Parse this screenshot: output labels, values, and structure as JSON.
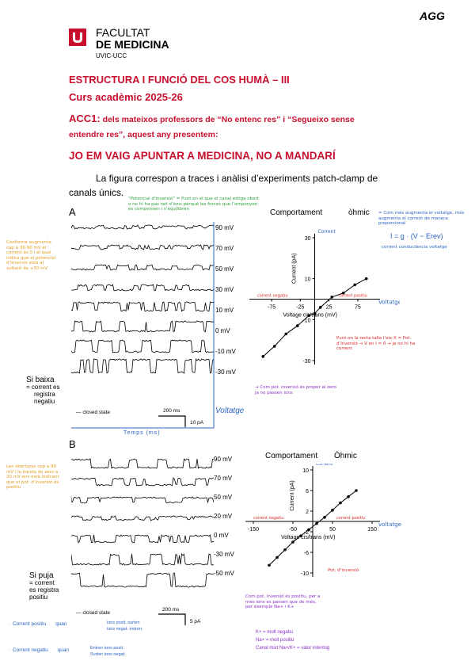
{
  "header": {
    "initials": "AGG",
    "faculty_line1": "FACULTAT",
    "faculty_line2": "DE MEDICINA",
    "university": "UVIC-UCC"
  },
  "course": {
    "title": "ESTRUCTURA I FUNCIÓ DEL COS HUMÀ – III",
    "year": "Curs acadèmic 2025-26",
    "acc_code": "ACC1:",
    "acc_text_1": "dels mateixos professors de “No entenc res” i “Segueixo sense",
    "acc_text_2": "entendre res”, aquest any presentem:",
    "slogan": "JO EM VAIG APUNTAR A MEDICINA, NO A MANDARÍ",
    "intro_line1": "La figura correspon a traces i anàlisi d’experiments patch-clamp de",
    "intro_line2": "canals únics."
  },
  "panel_a": {
    "label": "A",
    "voltages": [
      "90 mV",
      "70 mV",
      "50 mV",
      "30 mV",
      "10 mV",
      "0 mV",
      "-10 mV",
      "-30 mV"
    ],
    "closed_state": "closed state",
    "time_scale": "200 ms",
    "current_scale": "10 pA",
    "annotations": {
      "potencial_invers": "“Potencial d’inversió” = Punt en el que el canal estiga obert o no hi ha pas net d’ions perquè les forces que l’empenyen es compensen i s’equilibren",
      "conforme": "Conforme augmenta cap a 30-90 mV el corrent és 0 i el qual indica que el potencial d’inversió està al voltant de +30 mV",
      "si_baixa_1": "Si baixa",
      "si_baixa_2": "= corrent es",
      "si_baixa_3": "registra",
      "si_baixa_4": "negatiu",
      "com_pot": "→ Com pot. inversió és proper al zero ja no passen ions",
      "voltatge": "Voltatge",
      "temps": "Temps (ms)"
    }
  },
  "graph_a": {
    "title_1": "Comportament",
    "title_2": "òhmic",
    "ohmic_note": "= Com més augmenta el voltatge, més augmenta el corrent de manera proporcional",
    "formula": "I = g · (V − Erev)",
    "formula_labels": "corrent conductància voltatge",
    "y_label": "Current (pA)",
    "x_label": "Voltage cis/trans (mV)",
    "corrent_label": "Corrent",
    "voltatge_label": "Voltatge",
    "corrent_positiu": "corrent positiu",
    "corrent_negatiu": "corrent negatiu",
    "punt_note": "Punt on la recta talla l’eix X = Pot. d’inversió → V en I = 0 → ja no hi ha corrent"
  },
  "chart_data": [
    {
      "type": "line",
      "title": "",
      "xlabel": "Voltage cis/trans (mV)",
      "ylabel": "Current (pA)",
      "xlim": [
        -100,
        100
      ],
      "ylim": [
        -30,
        30
      ],
      "x_ticks": [
        -75,
        -25,
        25,
        75
      ],
      "y_ticks": [
        30,
        10,
        -10,
        -30
      ],
      "x": [
        -90,
        -70,
        -50,
        -30,
        -10,
        0,
        10,
        30,
        50,
        70,
        90
      ],
      "y": [
        -28,
        -23,
        -17,
        -13,
        -8,
        -7,
        -4,
        1,
        3,
        7,
        10
      ]
    },
    {
      "type": "line",
      "title": "",
      "xlabel": "Voltage cis/trans (mV)",
      "ylabel": "Current (pA)",
      "xlim": [
        -150,
        150
      ],
      "ylim": [
        -10,
        10
      ],
      "x_ticks": [
        -150,
        -50,
        50,
        150
      ],
      "y_ticks": [
        10,
        6,
        2,
        -2,
        -6,
        -10
      ],
      "x": [
        -110,
        -90,
        -70,
        -50,
        -30,
        -10,
        10,
        30,
        50,
        70,
        90,
        110
      ],
      "y": [
        -8.5,
        -7,
        -5.5,
        -4,
        -2.8,
        -1.6,
        -0.4,
        0.8,
        2.2,
        3.6,
        4.8,
        6
      ]
    }
  ],
  "panel_b": {
    "label": "B",
    "voltages": [
      "90 mV",
      "70 mV",
      "50 mV",
      "20 mV",
      "0 mV",
      "-30 mV",
      "-50 mV"
    ],
    "closed_state": "closed state",
    "time_scale": "200 ms",
    "current_scale": "5 pA",
    "annotations": {
      "els_obertures": "Les obertures cap a 90 mV i la banda de zero a 20 mV ens està indicant que el pot. d’inversió és positiu",
      "si_puja_1": "Si puja",
      "si_puja_2": "= corrent",
      "si_puja_3": "es registra",
      "si_puja_4": "positiu",
      "pot_inversio": "Pot. d’inversió",
      "com_pot_b": "Com pot. inversió és positiu, per a més ions es passen que de més, per exemple Na+ i K+",
      "na_mes_negatiu": "K+ = molt negatiu",
      "na_mes_positiu": "Na+ = molt positiu",
      "canal_mixt": "Canal mixt Na+/K+ = valor intermig",
      "corrent_positiu_title": "· Corrent positiu",
      "quan": "quan",
      "pos_1": "ions posit. surten",
      "pos_2": "ions negat. entren",
      "corrent_negatiu_title": "· Corrent negatiu",
      "quan_2": "quan",
      "neg_1": "Entren ions posit.",
      "neg_2": "Surten ions negat."
    }
  },
  "graph_b": {
    "title_1": "Comportament",
    "title_2": "Òhmic",
    "y_label": "Current (pA)",
    "x_label": "Voltage cis/trans (mV)",
    "corrent_label": "corrent",
    "voltatge_label": "voltatge",
    "corrent_positiu": "corrent positiu",
    "corrent_negatiu": "corrent negatiu"
  },
  "colors": {
    "brand_red": "#c8102e",
    "note_green": "#2e9e3a",
    "note_orange": "#e39b1f",
    "note_blue": "#2a64c5",
    "note_purple": "#8a2fc9",
    "note_red": "#e02828"
  }
}
